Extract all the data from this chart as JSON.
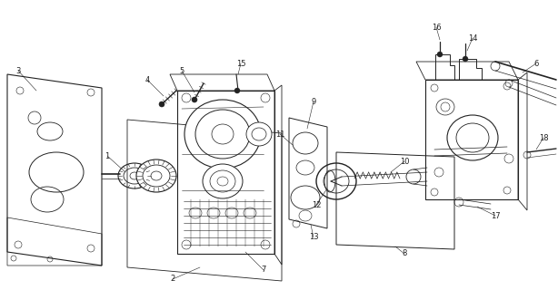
{
  "bg_color": "#ffffff",
  "line_color": "#222222",
  "figsize": [
    6.14,
    3.2
  ],
  "dpi": 100,
  "label_fontsize": 6.0
}
